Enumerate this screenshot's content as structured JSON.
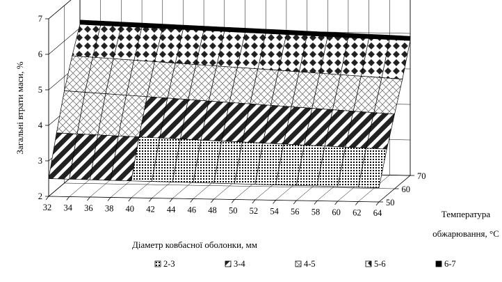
{
  "chart_data": {
    "type": "surface",
    "title": "",
    "ylabel": "Загальні втрати маси, %",
    "xlabel": "Діаметр ковбасної оболонки, мм",
    "zlabel_line1": "Температура",
    "zlabel_line2": "обжарювання, °С",
    "x_ticks": [
      "32",
      "34",
      "36",
      "38",
      "40",
      "42",
      "44",
      "46",
      "48",
      "50",
      "52",
      "54",
      "56",
      "58",
      "60",
      "62",
      "64"
    ],
    "z_ticks": [
      "50",
      "60",
      "70"
    ],
    "y_ticks": [
      "2",
      "3",
      "4",
      "5",
      "6",
      "7"
    ],
    "ylim": [
      2,
      7
    ],
    "x_range": [
      32,
      64
    ],
    "z_range": [
      50,
      70
    ],
    "surface": {
      "description_values": "loss increases with temperature, nearly flat along diameter",
      "grid_x": [
        32,
        34,
        36,
        38,
        40,
        42,
        44,
        46,
        48,
        50,
        52,
        54,
        56,
        58,
        60,
        62,
        64
      ],
      "grid_z": [
        50,
        55,
        60,
        65,
        70
      ],
      "values_at_x32": [
        2.5,
        3.6,
        4.6,
        5.4,
        6.1
      ],
      "values_at_x64": [
        2.4,
        3.3,
        4.1,
        4.9,
        5.8
      ]
    },
    "legend": [
      {
        "label": "2-3",
        "pattern": "dots",
        "color": "#ffffff"
      },
      {
        "label": "3-4",
        "pattern": "diag-thick",
        "color": "#000000"
      },
      {
        "label": "4-5",
        "pattern": "crosshatch-light",
        "color": "#ffffff"
      },
      {
        "label": "5-6",
        "pattern": "diamond",
        "color": "#000000"
      },
      {
        "label": "6-7",
        "pattern": "solid",
        "color": "#000000"
      }
    ],
    "legend_position": "bottom",
    "grid": true
  }
}
